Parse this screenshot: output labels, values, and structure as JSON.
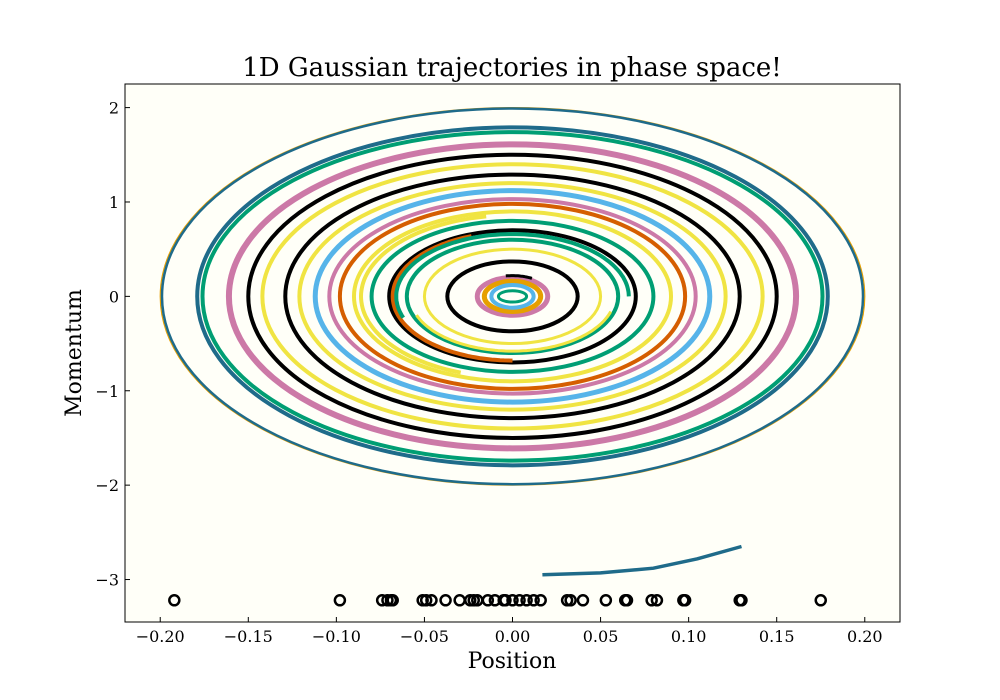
{
  "chart_data": {
    "type": "line",
    "title": "1D Gaussian trajectories in phase space!",
    "xlabel": "Position",
    "ylabel": "Momentum",
    "xlim": [
      -0.22,
      0.22
    ],
    "ylim": [
      -3.45,
      2.25
    ],
    "grid": false,
    "background": "#fffff8",
    "x_ticks": [
      -0.2,
      -0.15,
      -0.1,
      -0.05,
      0.0,
      0.05,
      0.1,
      0.15,
      0.2
    ],
    "x_tick_labels": [
      "−0.20",
      "−0.15",
      "−0.10",
      "−0.05",
      "0.00",
      "0.05",
      "0.10",
      "0.15",
      "0.20"
    ],
    "y_ticks": [
      2,
      1,
      0,
      -1,
      -2,
      -3
    ],
    "y_tick_labels": [
      "2",
      "1",
      "0",
      "−1",
      "−2",
      "−3"
    ],
    "series": [
      {
        "type": "ellipse",
        "a": 0.2,
        "b": 2.0,
        "color": "#e69f00",
        "width": 1.2
      },
      {
        "type": "ellipse",
        "a": 0.199,
        "b": 1.99,
        "color": "#1f6b8a",
        "width": 2.5
      },
      {
        "type": "ellipse",
        "a": 0.179,
        "b": 1.79,
        "color": "#1f6b8a",
        "width": 4
      },
      {
        "type": "ellipse",
        "a": 0.176,
        "b": 1.74,
        "color": "#009e73",
        "width": 4
      },
      {
        "type": "ellipse",
        "a": 0.161,
        "b": 1.61,
        "color": "#cc79a7",
        "width": 6
      },
      {
        "type": "ellipse",
        "a": 0.15,
        "b": 1.5,
        "color": "#000000",
        "width": 4
      },
      {
        "type": "ellipse",
        "a": 0.142,
        "b": 1.4,
        "color": "#f0e442",
        "width": 4
      },
      {
        "type": "ellipse",
        "a": 0.129,
        "b": 1.29,
        "color": "#000000",
        "width": 4
      },
      {
        "type": "ellipse",
        "a": 0.121,
        "b": 1.2,
        "color": "#f0e442",
        "width": 4
      },
      {
        "type": "ellipse",
        "a": 0.112,
        "b": 1.12,
        "color": "#56b4e9",
        "width": 5
      },
      {
        "type": "ellipse",
        "a": 0.104,
        "b": 1.03,
        "color": "#cc79a7",
        "width": 4
      },
      {
        "type": "ellipse",
        "a": 0.098,
        "b": 0.98,
        "color": "#d55e00",
        "width": 4
      },
      {
        "type": "ellipse",
        "a": 0.09,
        "b": 0.9,
        "color": "#f0e442",
        "width": 4
      },
      {
        "type": "ellipse",
        "a": 0.08,
        "b": 0.8,
        "color": "#009e73",
        "width": 4
      },
      {
        "type": "ellipse",
        "a": 0.07,
        "b": 0.7,
        "color": "#000000",
        "width": 4
      },
      {
        "type": "ellipse",
        "a": 0.06,
        "b": 0.6,
        "color": "#009e73",
        "width": 4
      },
      {
        "type": "ellipse",
        "a": 0.05,
        "b": 0.5,
        "color": "#f0e442",
        "width": 3
      },
      {
        "type": "ellipse",
        "a": 0.037,
        "b": 0.37,
        "color": "#000000",
        "width": 4
      },
      {
        "type": "ellipse",
        "a": 0.02,
        "b": 0.2,
        "color": "#cc79a7",
        "width": 5
      },
      {
        "type": "ellipse",
        "a": 0.016,
        "b": 0.16,
        "color": "#e69f00",
        "width": 5
      },
      {
        "type": "ellipse",
        "a": 0.012,
        "b": 0.12,
        "color": "#56b4e9",
        "width": 4
      },
      {
        "type": "ellipse",
        "a": 0.008,
        "b": 0.06,
        "color": "#009e73",
        "width": 3
      },
      {
        "type": "arc",
        "a": 0.086,
        "b": 0.86,
        "t0": 100,
        "t1": 250,
        "color": "#f0e442",
        "width": 4
      },
      {
        "type": "arc",
        "a": 0.068,
        "b": 0.68,
        "t0": 110,
        "t1": 270,
        "color": "#d55e00",
        "width": 4
      },
      {
        "type": "arc",
        "a": 0.066,
        "b": 0.66,
        "t0": 0,
        "t1": 200,
        "color": "#009e73",
        "width": 4
      },
      {
        "type": "arc",
        "a": 0.058,
        "b": 0.58,
        "t0": 200,
        "t1": 345,
        "color": "#f0e442",
        "width": 3
      },
      {
        "type": "arc",
        "a": 0.022,
        "b": 0.22,
        "t0": 60,
        "t1": 100,
        "color": "#000000",
        "width": 3
      },
      {
        "type": "line",
        "points": [
          [
            0.017,
            -2.95
          ],
          [
            0.05,
            -2.93
          ],
          [
            0.08,
            -2.88
          ],
          [
            0.105,
            -2.78
          ],
          [
            0.13,
            -2.65
          ]
        ],
        "color": "#1f6b8a",
        "width": 3.5
      },
      {
        "type": "scatter",
        "marker": "open-circle",
        "color": "#000000",
        "y": -3.22,
        "x": [
          -0.192,
          -0.098,
          -0.074,
          -0.071,
          -0.069,
          -0.068,
          -0.051,
          -0.049,
          -0.046,
          -0.038,
          -0.03,
          -0.024,
          -0.022,
          -0.02,
          -0.014,
          -0.01,
          -0.005,
          -0.004,
          0.0,
          0.004,
          0.008,
          0.012,
          0.016,
          0.031,
          0.033,
          0.04,
          0.053,
          0.064,
          0.065,
          0.079,
          0.082,
          0.097,
          0.098,
          0.129,
          0.13,
          0.175
        ]
      }
    ]
  }
}
